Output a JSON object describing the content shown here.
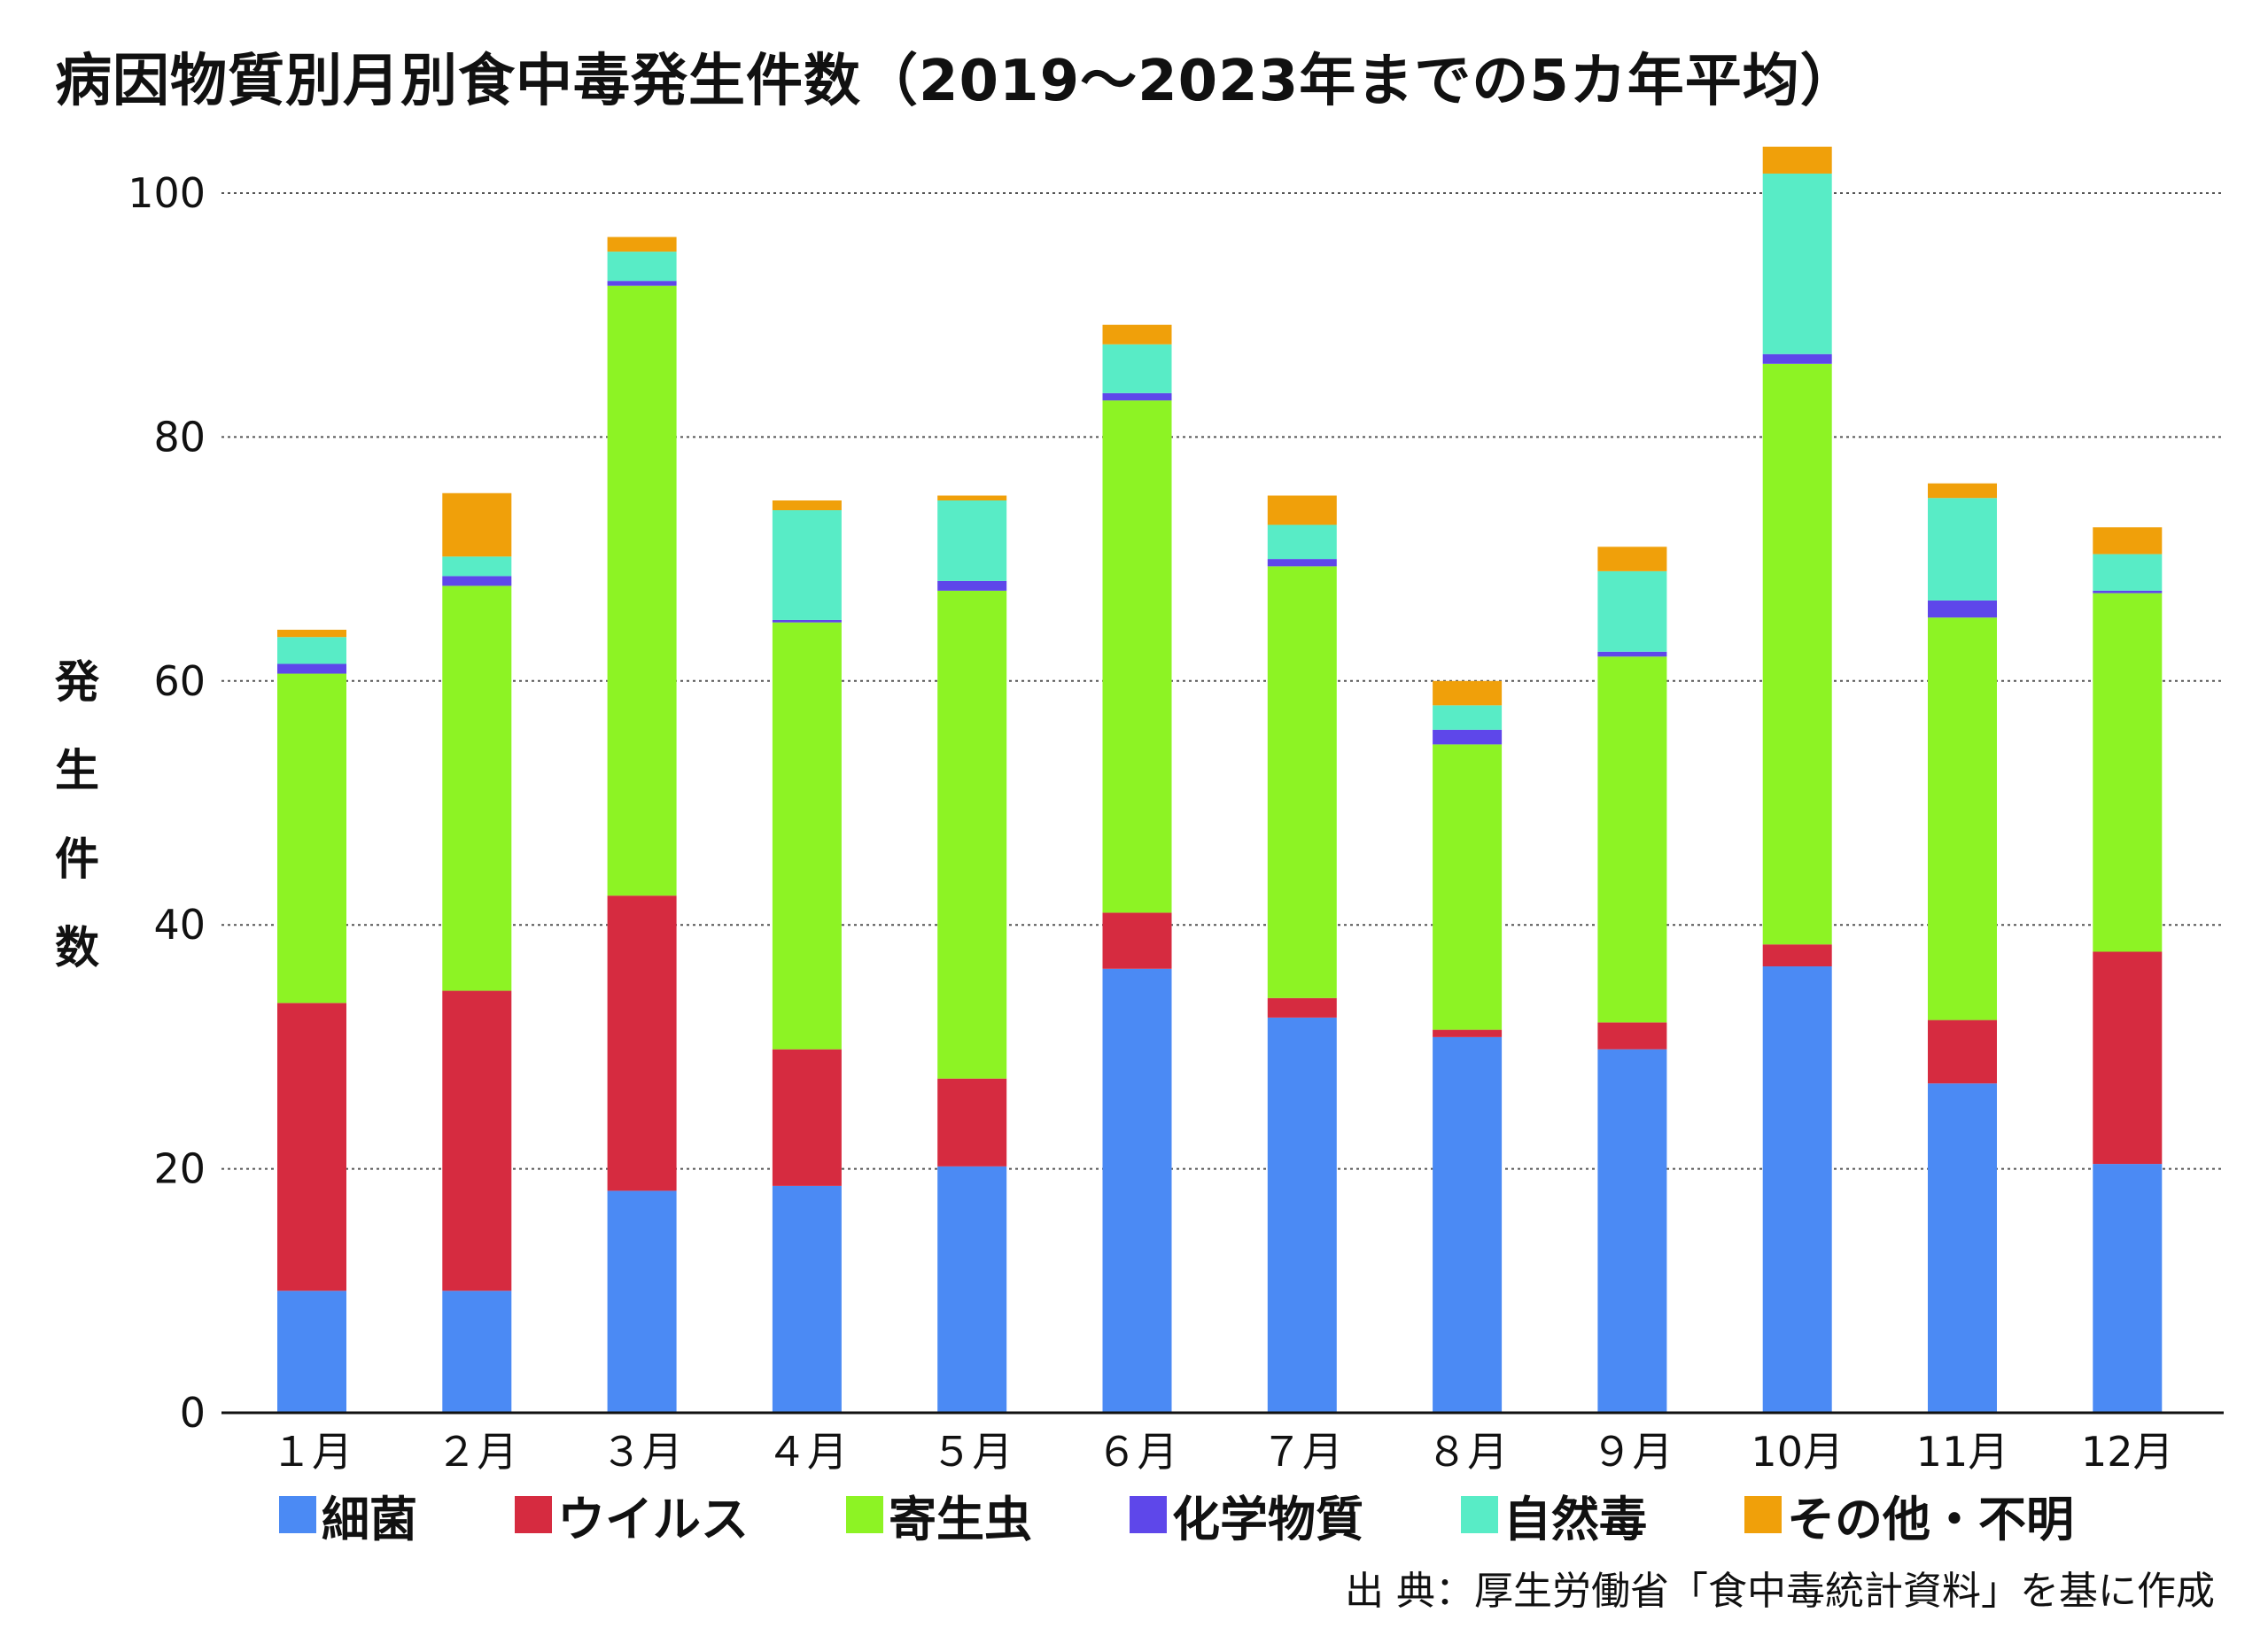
{
  "chart_data": {
    "type": "bar",
    "stacked": true,
    "title": "病因物質別月別食中毒発生件数（2019～2023年までの5カ年平均）",
    "ylabel": "発生件数",
    "xlabel": "",
    "ylim": [
      0,
      105
    ],
    "yticks": [
      0,
      20,
      40,
      60,
      80,
      100
    ],
    "grid": true,
    "legend": "bottom",
    "categories": [
      "１月",
      "２月",
      "３月",
      "４月",
      "５月",
      "６月",
      "７月",
      "８月",
      "９月",
      "10月",
      "11月",
      "12月"
    ],
    "series": [
      {
        "name": "細菌",
        "color": "#4b8af4",
        "values": [
          10.0,
          10.0,
          18.2,
          18.6,
          20.2,
          36.4,
          32.4,
          30.8,
          29.8,
          36.6,
          27.0,
          20.4
        ]
      },
      {
        "name": "ウイルス",
        "color": "#d62b40",
        "values": [
          23.6,
          24.6,
          24.2,
          11.2,
          7.2,
          4.6,
          1.6,
          0.6,
          2.2,
          1.8,
          5.2,
          17.4
        ]
      },
      {
        "name": "寄生虫",
        "color": "#8df324",
        "values": [
          27.0,
          33.2,
          50.0,
          35.0,
          40.0,
          42.0,
          35.4,
          23.4,
          30.0,
          47.6,
          33.0,
          29.4
        ]
      },
      {
        "name": "化学物質",
        "color": "#5e47ea",
        "values": [
          0.8,
          0.8,
          0.4,
          0.2,
          0.8,
          0.6,
          0.6,
          1.2,
          0.4,
          0.8,
          1.4,
          0.2
        ]
      },
      {
        "name": "自然毒",
        "color": "#58ecc6",
        "values": [
          2.2,
          1.6,
          2.4,
          9.0,
          6.6,
          4.0,
          2.8,
          2.0,
          6.6,
          14.8,
          8.4,
          3.0
        ]
      },
      {
        "name": "その他・不明",
        "color": "#f0a00a",
        "values": [
          0.6,
          5.2,
          1.2,
          0.8,
          0.4,
          1.6,
          2.4,
          2.0,
          2.0,
          2.2,
          1.2,
          2.2
        ]
      }
    ]
  },
  "source": "出 典：厚生労働省「食中毒統計資料」を基に作成"
}
